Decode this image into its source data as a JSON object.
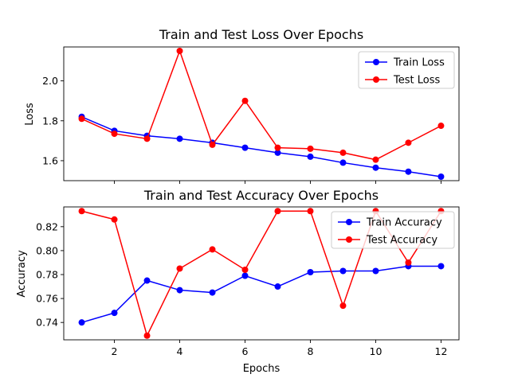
{
  "chart_data": [
    {
      "type": "line",
      "title": "Train and Test Loss Over Epochs",
      "xlabel": "",
      "ylabel": "Loss",
      "x": [
        1,
        2,
        3,
        4,
        5,
        6,
        7,
        8,
        9,
        10,
        11,
        12
      ],
      "xlim": [
        0.45,
        12.55
      ],
      "ylim": [
        1.5,
        2.17
      ],
      "xticks": [
        2,
        4,
        6,
        8,
        10,
        12
      ],
      "yticks": [
        1.6,
        1.8,
        2.0
      ],
      "ytick_labels": [
        "1.6",
        "1.8",
        "2.0"
      ],
      "grid": false,
      "legend": "top-right",
      "series": [
        {
          "name": "Train Loss",
          "color": "#0000ff",
          "values": [
            1.82,
            1.75,
            1.725,
            1.71,
            1.69,
            1.665,
            1.64,
            1.62,
            1.59,
            1.565,
            1.545,
            1.52
          ]
        },
        {
          "name": "Test Loss",
          "color": "#ff0000",
          "values": [
            1.81,
            1.735,
            1.71,
            2.15,
            1.68,
            1.9,
            1.665,
            1.66,
            1.64,
            1.605,
            1.69,
            1.775
          ]
        }
      ]
    },
    {
      "type": "line",
      "title": "Train and Test Accuracy Over Epochs",
      "xlabel": "Epochs",
      "ylabel": "Accuracy",
      "x": [
        1,
        2,
        3,
        4,
        5,
        6,
        7,
        8,
        9,
        10,
        11,
        12
      ],
      "xlim": [
        0.45,
        12.55
      ],
      "ylim": [
        0.7255,
        0.8365
      ],
      "xticks": [
        2,
        4,
        6,
        8,
        10,
        12
      ],
      "yticks": [
        0.74,
        0.76,
        0.78,
        0.8,
        0.82
      ],
      "ytick_labels": [
        "0.74",
        "0.76",
        "0.78",
        "0.80",
        "0.82"
      ],
      "grid": false,
      "legend": "top-right",
      "series": [
        {
          "name": "Train Accuracy",
          "color": "#0000ff",
          "values": [
            0.74,
            0.748,
            0.775,
            0.767,
            0.765,
            0.779,
            0.77,
            0.782,
            0.783,
            0.783,
            0.787,
            0.787
          ]
        },
        {
          "name": "Test Accuracy",
          "color": "#ff0000",
          "values": [
            0.833,
            0.826,
            0.729,
            0.785,
            0.801,
            0.784,
            0.833,
            0.833,
            0.754,
            0.833,
            0.79,
            0.833
          ]
        }
      ]
    }
  ]
}
